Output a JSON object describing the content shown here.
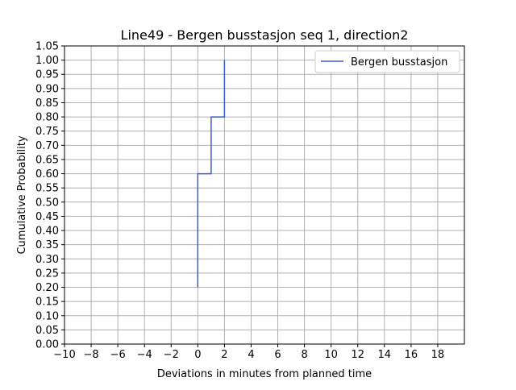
{
  "chart_data": {
    "type": "line",
    "title": "Line49 - Bergen busstasjon seq 1, direction2",
    "xlabel": "Deviations in minutes from planned time",
    "ylabel": "Cumulative Probability",
    "xlim": [
      -10,
      20
    ],
    "ylim": [
      0,
      1.05
    ],
    "x_ticks": [
      "−10",
      "−8",
      "−6",
      "−4",
      "−2",
      "0",
      "2",
      "4",
      "6",
      "8",
      "10",
      "12",
      "14",
      "16",
      "18"
    ],
    "x_tick_values": [
      -10,
      -8,
      -6,
      -4,
      -2,
      0,
      2,
      4,
      6,
      8,
      10,
      12,
      14,
      16,
      18
    ],
    "y_ticks": [
      "0.00",
      "0.05",
      "0.10",
      "0.15",
      "0.20",
      "0.25",
      "0.30",
      "0.35",
      "0.40",
      "0.45",
      "0.50",
      "0.55",
      "0.60",
      "0.65",
      "0.70",
      "0.75",
      "0.80",
      "0.85",
      "0.90",
      "0.95",
      "1.00",
      "1.05"
    ],
    "y_tick_values": [
      0,
      0.05,
      0.1,
      0.15,
      0.2,
      0.25,
      0.3,
      0.35,
      0.4,
      0.45,
      0.5,
      0.55,
      0.6,
      0.65,
      0.7,
      0.75,
      0.8,
      0.85,
      0.9,
      0.95,
      1.0,
      1.05
    ],
    "grid": true,
    "legend_position": "top-right",
    "series": [
      {
        "name": "Bergen busstasjon",
        "color": "#3b5bdb",
        "x": [
          0,
          0,
          1,
          1,
          2,
          2
        ],
        "y": [
          0.2,
          0.6,
          0.6,
          0.8,
          0.8,
          1.0
        ]
      }
    ]
  }
}
